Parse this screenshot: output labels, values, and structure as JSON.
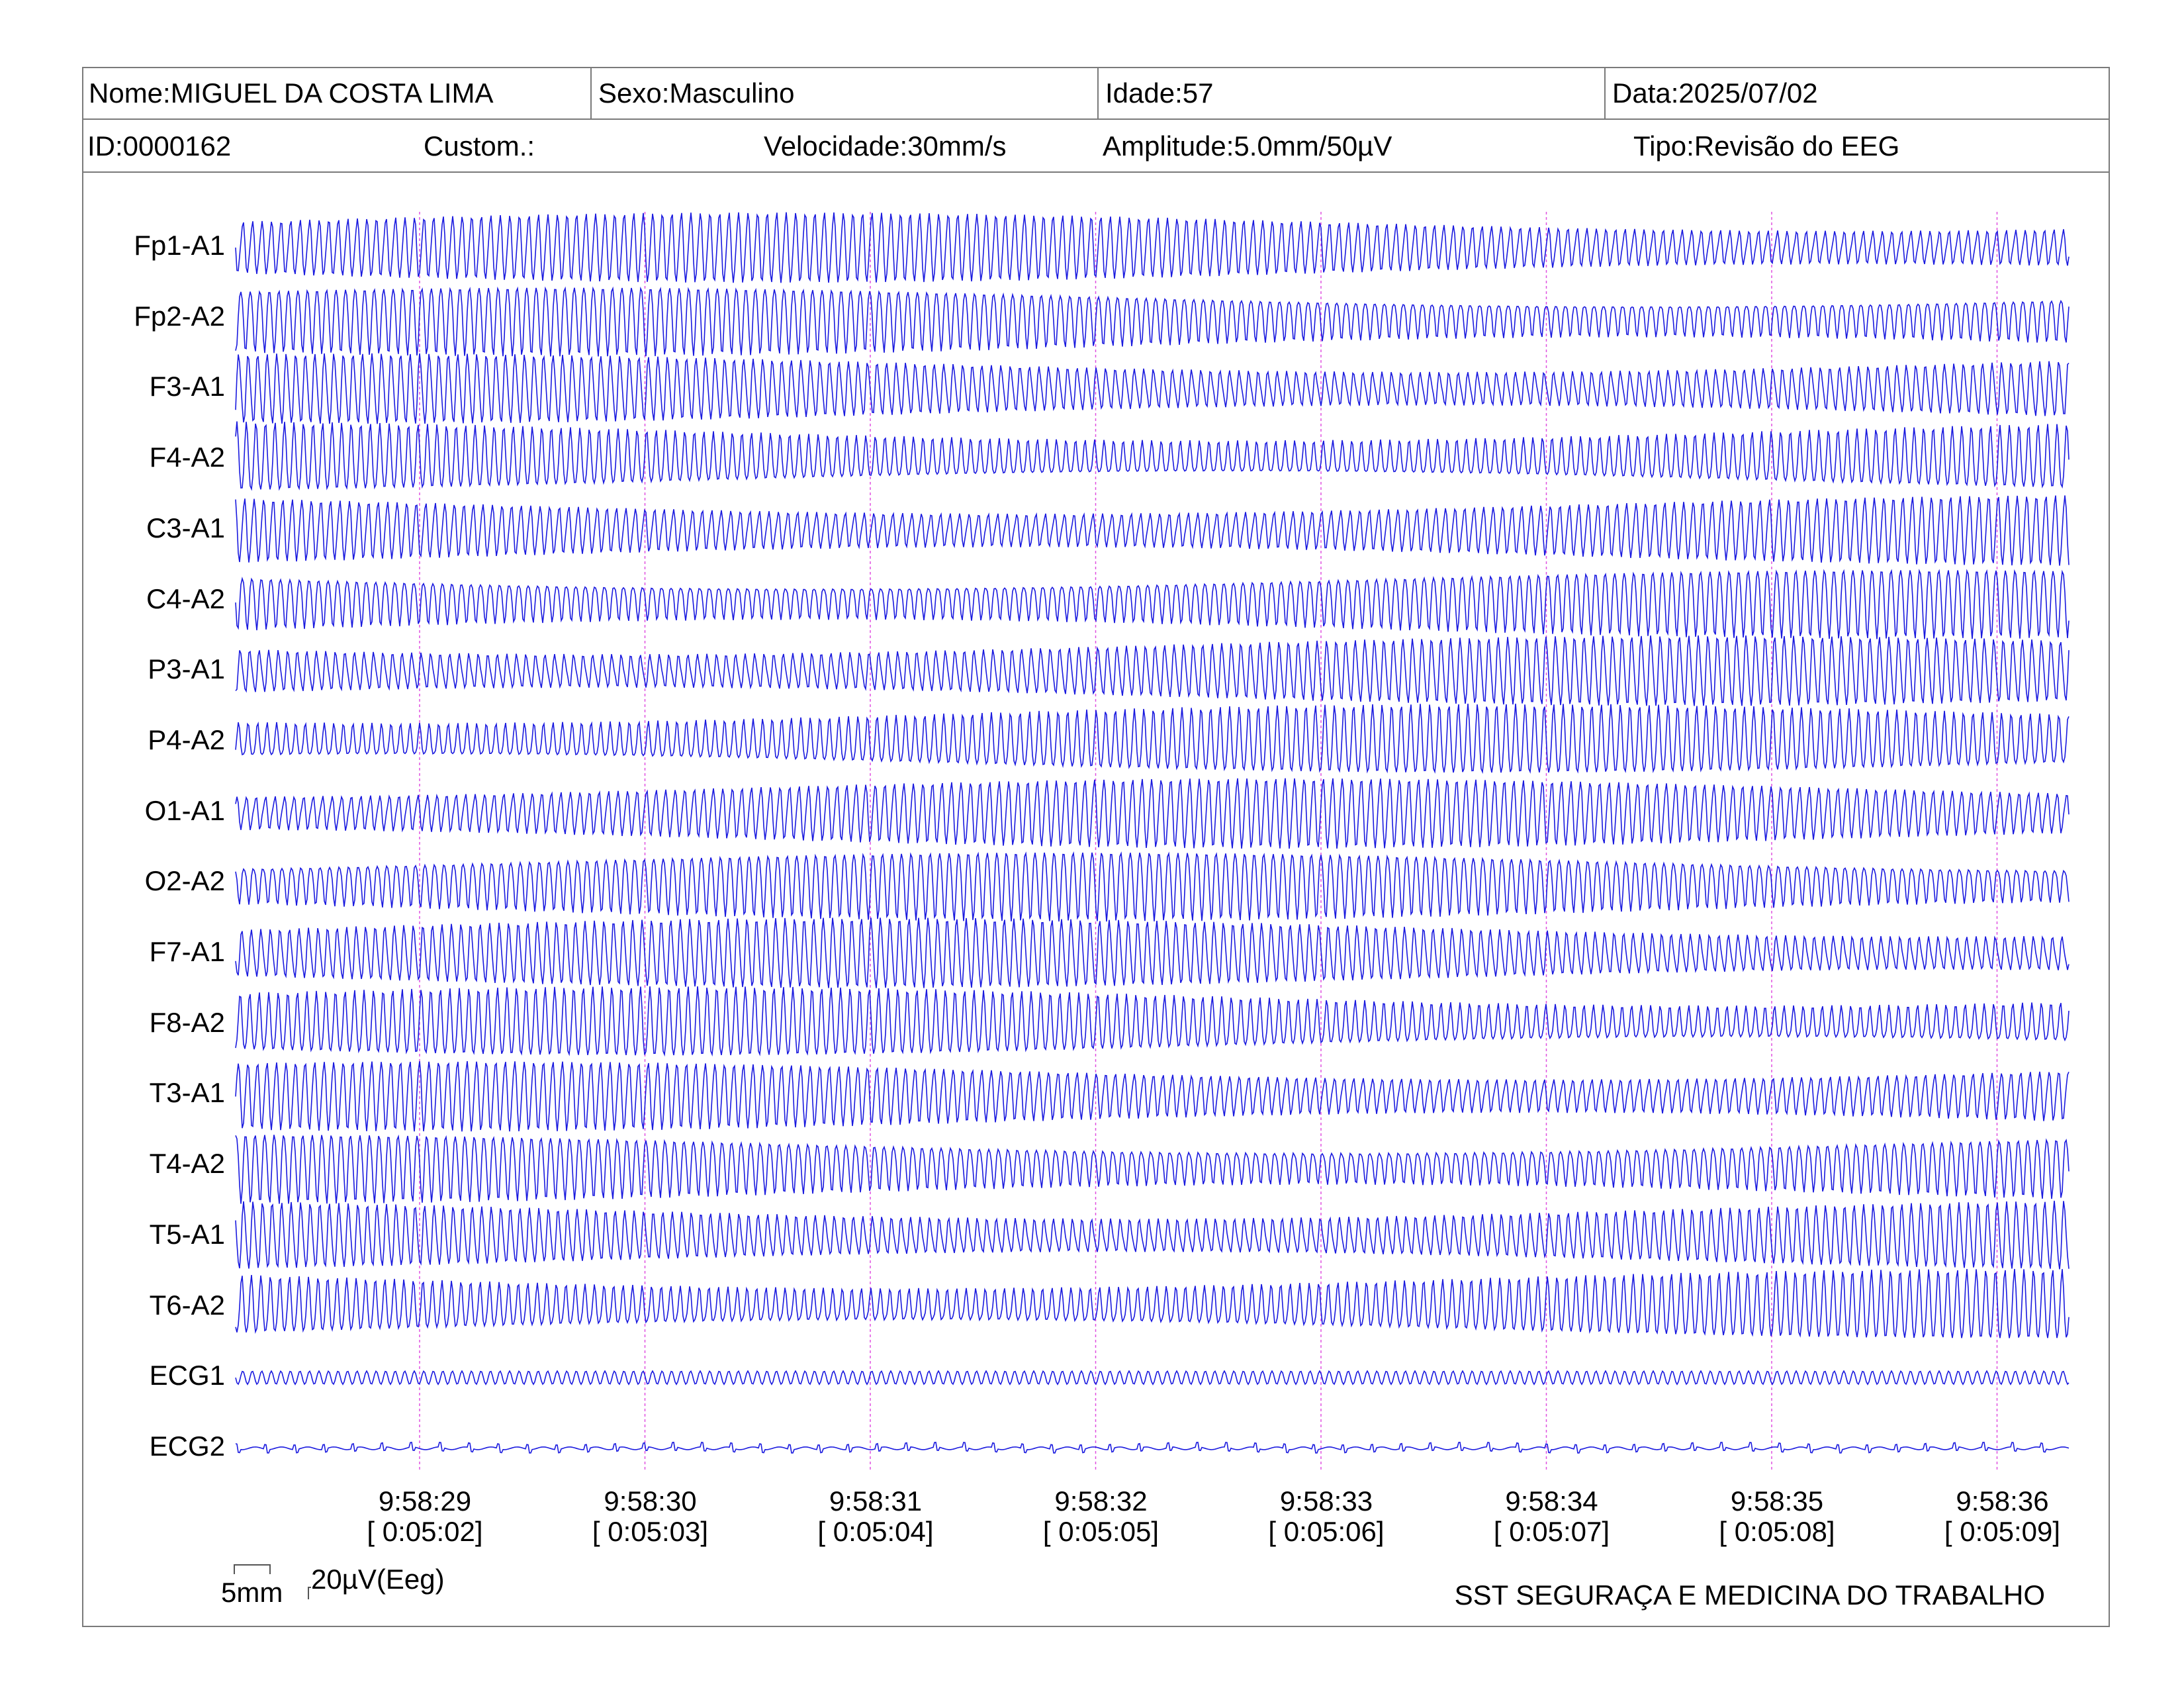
{
  "header": {
    "nome": "Nome:MIGUEL DA COSTA LIMA",
    "sexo": "Sexo:Masculino",
    "idade": "Idade:57",
    "data": "Data:2025/07/02",
    "id": "ID:0000162",
    "custom": "Custom.:",
    "velocidade": "Velocidade:30mm/s",
    "amplitude": "Amplitude:5.0mm/50µV",
    "tipo": "Tipo:Revisão do EEG"
  },
  "scale_bar": {
    "length_label": "5mm",
    "amplitude_label": "20µV(Eeg)"
  },
  "footer": {
    "company": "SST SEGURAÇA E MEDICINA DO TRABALHO"
  },
  "colors": {
    "trace": "#1a1adf",
    "marker": "#e050e0",
    "border": "#7a7a7a"
  },
  "chart_data": {
    "type": "line",
    "title": "",
    "channels": [
      "Fp1-A1",
      "Fp2-A2",
      "F3-A1",
      "F4-A2",
      "C3-A1",
      "C4-A2",
      "P3-A1",
      "P4-A2",
      "O1-A1",
      "O2-A2",
      "F7-A1",
      "F8-A2",
      "T3-A1",
      "T4-A2",
      "T5-A1",
      "T6-A2",
      "ECG1",
      "ECG2"
    ],
    "time_marks": [
      {
        "clock": "9:58:29",
        "elapsed": "[ 0:05:02]"
      },
      {
        "clock": "9:58:30",
        "elapsed": "[ 0:05:03]"
      },
      {
        "clock": "9:58:31",
        "elapsed": "[ 0:05:04]"
      },
      {
        "clock": "9:58:32",
        "elapsed": "[ 0:05:05]"
      },
      {
        "clock": "9:58:33",
        "elapsed": "[ 0:05:06]"
      },
      {
        "clock": "9:58:34",
        "elapsed": "[ 0:05:07]"
      },
      {
        "clock": "9:58:35",
        "elapsed": "[ 0:05:08]"
      },
      {
        "clock": "9:58:36",
        "elapsed": "[ 0:05:09]"
      }
    ],
    "speed": "30mm/s",
    "sensitivity": "5.0mm/50µV",
    "grid": false
  }
}
